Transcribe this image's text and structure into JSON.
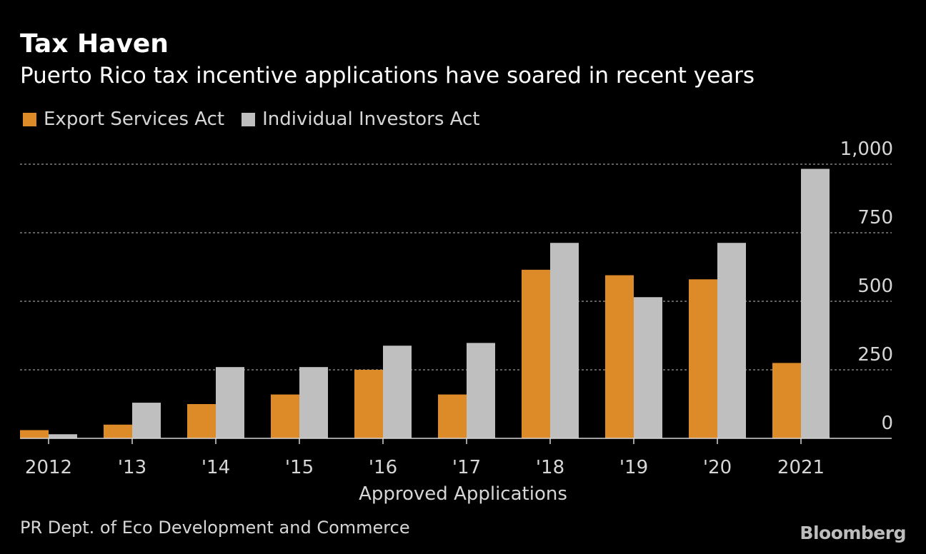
{
  "header": {
    "title": "Tax Haven",
    "subtitle": "Puerto Rico tax incentive applications have soared in recent years"
  },
  "colors": {
    "background": "#000000",
    "export_services": "#dd8a29",
    "individual_investors": "#bfbfbf",
    "gridline": "#808080",
    "text": "#d6d6d6"
  },
  "chart_data": {
    "type": "bar",
    "title": "Tax Haven",
    "subtitle": "Puerto Rico tax incentive applications have soared in recent years",
    "categories": [
      "2012",
      "'13",
      "'14",
      "'15",
      "'16",
      "'17",
      "'18",
      "'19",
      "'20",
      "2021"
    ],
    "series": [
      {
        "name": "Export Services Act",
        "color": "#dd8a29",
        "values": [
          30,
          50,
          125,
          160,
          250,
          160,
          615,
          595,
          580,
          275
        ]
      },
      {
        "name": "Individual Investors Act",
        "color": "#bfbfbf",
        "values": [
          15,
          130,
          260,
          260,
          338,
          348,
          713,
          515,
          713,
          983
        ]
      }
    ],
    "yticks": [
      0,
      250,
      500,
      750,
      1000
    ],
    "ytick_labels": [
      "0",
      "250",
      "500",
      "750",
      "1,000"
    ],
    "ylim": [
      0,
      1000
    ],
    "xlabel": "Approved Applications",
    "ylabel": "",
    "grid": true,
    "legend_position": "top-left",
    "yaxis_position": "right"
  },
  "footer": {
    "source": "PR Dept. of Eco Development and Commerce",
    "brand": "Bloomberg"
  }
}
